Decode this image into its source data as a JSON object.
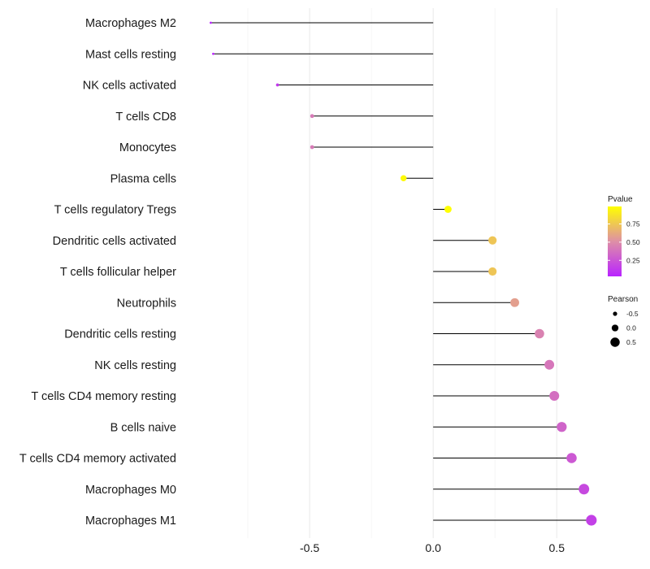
{
  "chart_data": {
    "type": "lollipop",
    "title": "",
    "xlabel": "",
    "ylabel": "",
    "xlim": [
      -1.0,
      0.68
    ],
    "xticks": [
      -0.5,
      0.0,
      0.5
    ],
    "xtick_labels": [
      "-0.5",
      "0.0",
      "0.5"
    ],
    "minor_gridlines": [
      -0.75,
      -0.25,
      0.25
    ],
    "grid": true,
    "categories": [
      "Macrophages M2",
      "Mast cells resting",
      "NK cells activated",
      "T cells CD8",
      "Monocytes",
      "Plasma cells",
      "T cells regulatory  Tregs ",
      "Dendritic cells activated",
      "T cells follicular helper",
      "Neutrophils",
      "Dendritic cells resting",
      "NK cells resting",
      "T cells CD4 memory resting",
      "B cells naive",
      "T cells CD4 memory activated",
      "Macrophages M0",
      "Macrophages M1"
    ],
    "values": [
      -0.9,
      -0.89,
      -0.63,
      -0.49,
      -0.49,
      -0.12,
      0.06,
      0.24,
      0.24,
      0.33,
      0.43,
      0.47,
      0.49,
      0.52,
      0.56,
      0.61,
      0.64
    ],
    "pvalues": [
      0.03,
      0.04,
      0.13,
      0.42,
      0.42,
      0.97,
      0.99,
      0.74,
      0.74,
      0.58,
      0.45,
      0.4,
      0.37,
      0.32,
      0.27,
      0.2,
      0.16
    ],
    "legend_pvalue": {
      "title": "Pvalue",
      "ticks": [
        0.25,
        0.5,
        0.75
      ],
      "tick_labels": [
        "0.25",
        "0.50",
        "0.75"
      ],
      "range": [
        0.03,
        0.99
      ],
      "color_low": "#b923ff",
      "color_mid": "#de8fa6",
      "color_high": "#ffff00"
    },
    "legend_pearson": {
      "title": "Pearson",
      "values": [
        -0.5,
        0.0,
        0.5
      ],
      "labels": [
        "-0.5",
        "0.0",
        "0.5"
      ]
    },
    "colors": {
      "segment": "#000000",
      "gridline": "#ebebeb"
    }
  }
}
